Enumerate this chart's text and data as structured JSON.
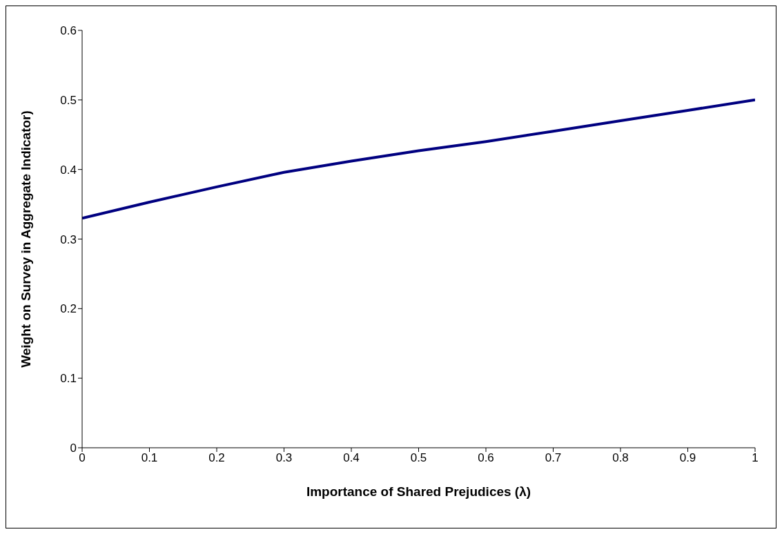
{
  "chart_data": {
    "type": "line",
    "xlabel": "Importance of Shared Prejudices (λ)",
    "ylabel": "Weight on Survey in Aggregate Indicator)",
    "x": [
      0,
      0.1,
      0.2,
      0.3,
      0.4,
      0.5,
      0.6,
      0.7,
      0.8,
      0.9,
      1
    ],
    "series": [
      {
        "color": "#000080",
        "values": [
          0.33,
          0.353,
          0.375,
          0.396,
          0.412,
          0.427,
          0.44,
          0.455,
          0.47,
          0.485,
          0.5
        ]
      }
    ],
    "xlim": [
      0,
      1
    ],
    "xticks": [
      0,
      0.1,
      0.2,
      0.3,
      0.4,
      0.5,
      0.6,
      0.7,
      0.8,
      0.9,
      1
    ],
    "ylim": [
      0,
      0.6
    ],
    "yticks": [
      0,
      0.1,
      0.2,
      0.3,
      0.4,
      0.5,
      0.6
    ],
    "grid": false,
    "legend": false,
    "marker": "none",
    "line_style": "solid"
  }
}
